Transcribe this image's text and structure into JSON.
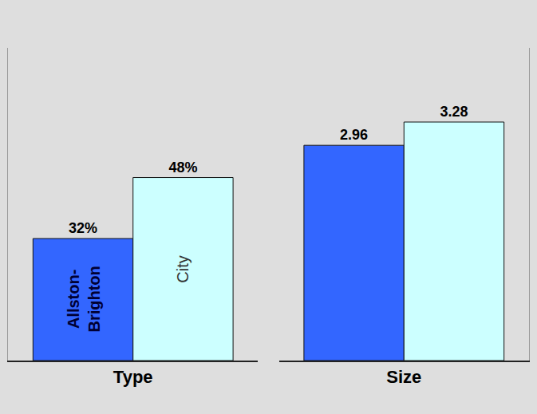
{
  "chart_data": [
    {
      "type": "bar",
      "categories": [
        "Type"
      ],
      "series": [
        {
          "name": "Allston-Brighton",
          "color": "#3366ff",
          "values": [
            32
          ],
          "value_labels": [
            "32%"
          ]
        },
        {
          "name": "City",
          "color": "#ccffff",
          "values": [
            48
          ],
          "value_labels": [
            "48%"
          ]
        }
      ],
      "ylim": [
        0,
        82
      ],
      "data_labels": true,
      "tick_labels": "x"
    },
    {
      "type": "bar",
      "categories": [
        "Size"
      ],
      "series": [
        {
          "color": "#3366ff",
          "values": [
            2.96
          ]
        },
        {
          "color": "#ccffff",
          "values": [
            3.28
          ]
        }
      ],
      "ylim": [
        0,
        4.3
      ],
      "data_labels": true,
      "tick_labels": "x"
    }
  ]
}
